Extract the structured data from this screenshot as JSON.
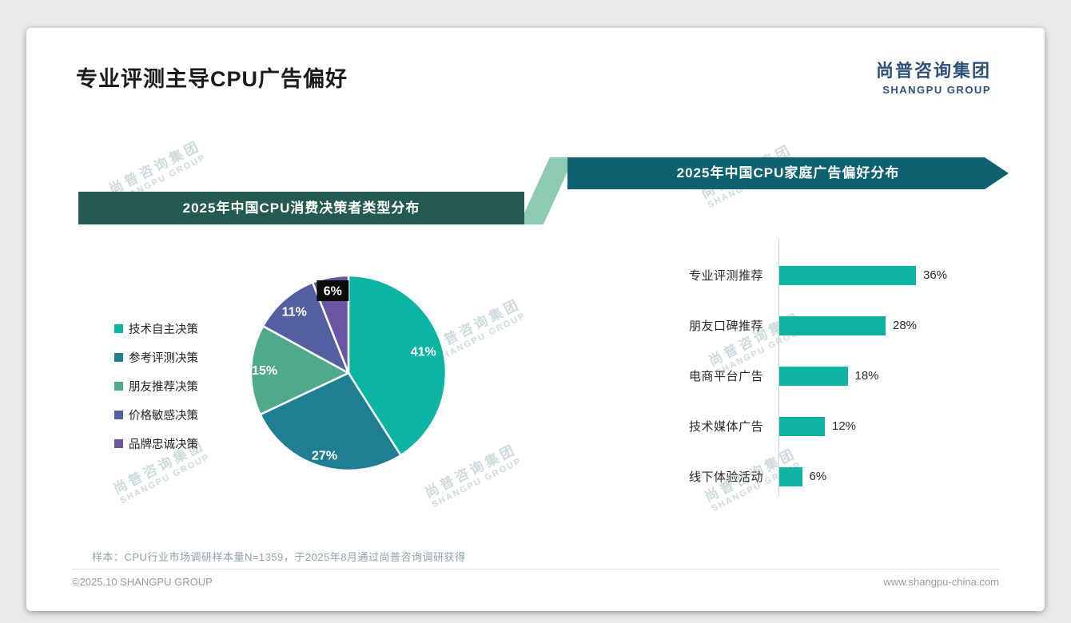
{
  "page": {
    "title": "专业评测主导CPU广告偏好",
    "logo": {
      "cn": "尚普咨询集团",
      "en": "SHANGPU GROUP"
    },
    "watermark": {
      "cn": "尚普咨询集团",
      "en": "SHANGPU GROUP"
    },
    "note": "样本：CPU行业市场调研样本量N=1359，于2025年8月通过尚普咨询调研获得",
    "footer": {
      "left": "©2025.10 SHANGPU GROUP",
      "right": "www.shangpu-china.com"
    }
  },
  "chart_data": [
    {
      "type": "pie",
      "title": "2025年中国CPU消费决策者类型分布",
      "labels": [
        "技术自主决策",
        "参考评测决策",
        "朋友推荐决策",
        "价格敏感决策",
        "品牌忠诚决策"
      ],
      "values": [
        41,
        27,
        15,
        11,
        6
      ],
      "data_labels": [
        "41%",
        "27%",
        "15%",
        "11%",
        "6%"
      ],
      "colors": [
        "#0db4a4",
        "#1f7e91",
        "#50a98c",
        "#545fa2",
        "#6a55a4"
      ],
      "legend_position": "left"
    },
    {
      "type": "bar",
      "orientation": "horizontal",
      "title": "2025年中国CPU家庭广告偏好分布",
      "categories": [
        "专业评测推荐",
        "朋友口碑推荐",
        "电商平台广告",
        "技术媒体广告",
        "线下体验活动"
      ],
      "values": [
        36,
        28,
        18,
        12,
        6
      ],
      "value_labels": [
        "36%",
        "28%",
        "18%",
        "12%",
        "6%"
      ],
      "color": "#0fb3a4",
      "xlim": [
        0,
        40
      ]
    }
  ]
}
